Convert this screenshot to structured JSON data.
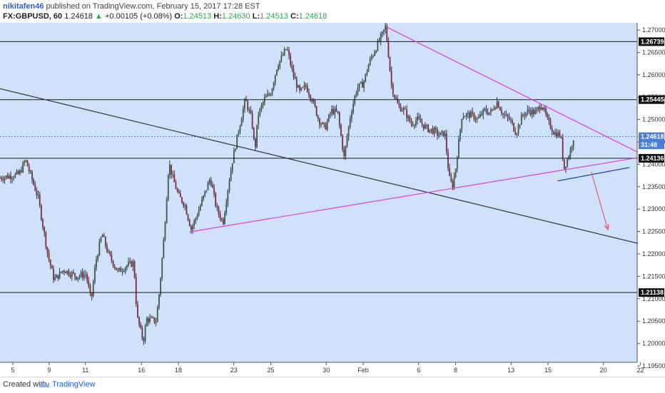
{
  "header": {
    "author": "nikitafen46",
    "published_text": "published on TradingView.com, February 15, 2017 17:28 EST",
    "symbol": "FX:GBPUSD, 60",
    "last": "1.24618",
    "change": "+0.00105 (+0.08%)",
    "o_label": "O:",
    "o_val": "1.24513",
    "h_label": "H:",
    "h_val": "1.24630",
    "l_label": "L:",
    "l_val": "1.24513",
    "c_label": "C:",
    "c_val": "1.24618"
  },
  "footer": {
    "created": "Created with",
    "brand": "TradingView"
  },
  "colors": {
    "background": "#cfe1fb",
    "candle": "#3c3c3c",
    "magenta": "#e040d8",
    "blue": "#1f2fb0",
    "red": "#e35d6a"
  },
  "chart_data": {
    "type": "candlestick",
    "title": "",
    "ylim": [
      1.1958,
      1.2716
    ],
    "xlim": [
      0,
      100
    ],
    "y_ticks": [
      "1.27000",
      "1.26500",
      "1.26000",
      "1.25500",
      "1.25000",
      "1.24500",
      "1.24000",
      "1.23500",
      "1.23000",
      "1.22500",
      "1.22000",
      "1.21500",
      "1.21000",
      "1.20500",
      "1.20000",
      "1.19500"
    ],
    "x_ticks": [
      {
        "label": "5",
        "x": 2
      },
      {
        "label": "9",
        "x": 7.7
      },
      {
        "label": "11",
        "x": 13.4
      },
      {
        "label": "16",
        "x": 22.2
      },
      {
        "label": "18",
        "x": 28
      },
      {
        "label": "23",
        "x": 36.7
      },
      {
        "label": "25",
        "x": 42.5
      },
      {
        "label": "30",
        "x": 51.2
      },
      {
        "label": "Feb",
        "x": 57
      },
      {
        "label": "6",
        "x": 65.7
      },
      {
        "label": "8",
        "x": 71.5
      },
      {
        "label": "13",
        "x": 80.2
      },
      {
        "label": "15",
        "x": 86
      },
      {
        "label": "20",
        "x": 94.7
      },
      {
        "label": "22",
        "x": 100.5
      }
    ],
    "price_labels": [
      {
        "text": "1.26739",
        "value": 1.26739,
        "style": "dark"
      },
      {
        "text": "1.25445",
        "value": 1.25445,
        "style": "dark"
      },
      {
        "text": "1.24618",
        "value": 1.24618,
        "style": "blue"
      },
      {
        "text": "31:48",
        "value": 1.24435,
        "style": "blue"
      },
      {
        "text": "1.24136",
        "value": 1.24136,
        "style": "dark"
      },
      {
        "text": "1.21138",
        "value": 1.21138,
        "style": "dark"
      }
    ],
    "horizontal_lines": [
      1.26739,
      1.25445,
      1.24136,
      1.21138
    ],
    "current_price_line": 1.24618,
    "trend_lines": [
      {
        "color": "#333333",
        "x1": 0,
        "y1": 1.2569,
        "x2": 102,
        "y2": 1.2217
      },
      {
        "color": "#e040d8",
        "x1": 29.7,
        "y1": 1.2249,
        "x2": 101.4,
        "y2": 1.2418
      },
      {
        "color": "#e040d8",
        "x1": 60.6,
        "y1": 1.2707,
        "x2": 101.4,
        "y2": 1.2418
      },
      {
        "color": "#1f2fb0",
        "x1": 87.5,
        "y1": 1.2363,
        "x2": 98.8,
        "y2": 1.2393
      }
    ],
    "arrow": {
      "color": "#e35d6a",
      "x1": 92.8,
      "y1": 1.2383,
      "x2": 95.4,
      "y2": 1.2254
    },
    "series_points": [
      [
        0,
        1.237
      ],
      [
        3,
        1.2378
      ],
      [
        4,
        1.241
      ],
      [
        6,
        1.2325
      ],
      [
        7.5,
        1.2198
      ],
      [
        8.5,
        1.2142
      ],
      [
        10,
        1.2165
      ],
      [
        12,
        1.215
      ],
      [
        13.5,
        1.2155
      ],
      [
        14.3,
        1.2095
      ],
      [
        15,
        1.218
      ],
      [
        16,
        1.2245
      ],
      [
        17,
        1.22
      ],
      [
        18.5,
        1.216
      ],
      [
        20,
        1.2175
      ],
      [
        21,
        1.218
      ],
      [
        21.5,
        1.206
      ],
      [
        22.5,
        1.2005
      ],
      [
        23,
        1.2055
      ],
      [
        24.5,
        1.205
      ],
      [
        25,
        1.2115
      ],
      [
        25.8,
        1.225
      ],
      [
        26.5,
        1.2405
      ],
      [
        27,
        1.2375
      ],
      [
        28,
        1.233
      ],
      [
        29,
        1.231
      ],
      [
        30,
        1.2255
      ],
      [
        31,
        1.229
      ],
      [
        32,
        1.233
      ],
      [
        33,
        1.237
      ],
      [
        34,
        1.23
      ],
      [
        35,
        1.227
      ],
      [
        35.8,
        1.235
      ],
      [
        36.5,
        1.241
      ],
      [
        37.5,
        1.248
      ],
      [
        38.5,
        1.2545
      ],
      [
        39.5,
        1.25
      ],
      [
        40,
        1.243
      ],
      [
        40.5,
        1.251
      ],
      [
        41.5,
        1.2545
      ],
      [
        42.5,
        1.256
      ],
      [
        43.5,
        1.262
      ],
      [
        45,
        1.266
      ],
      [
        46,
        1.26
      ],
      [
        47,
        1.256
      ],
      [
        48,
        1.2575
      ],
      [
        49,
        1.2545
      ],
      [
        50,
        1.25
      ],
      [
        51,
        1.248
      ],
      [
        52,
        1.252
      ],
      [
        53,
        1.2515
      ],
      [
        54,
        1.2415
      ],
      [
        55,
        1.251
      ],
      [
        56,
        1.257
      ],
      [
        57,
        1.258
      ],
      [
        58,
        1.263
      ],
      [
        59,
        1.266
      ],
      [
        60,
        1.269
      ],
      [
        60.5,
        1.2707
      ],
      [
        61,
        1.264
      ],
      [
        61.5,
        1.257
      ],
      [
        62.5,
        1.253
      ],
      [
        63.5,
        1.252
      ],
      [
        64.5,
        1.249
      ],
      [
        65.5,
        1.25
      ],
      [
        67,
        1.248
      ],
      [
        68,
        1.2475
      ],
      [
        69,
        1.2465
      ],
      [
        69.8,
        1.247
      ],
      [
        70.5,
        1.237
      ],
      [
        71,
        1.235
      ],
      [
        71.5,
        1.239
      ],
      [
        72.5,
        1.251
      ],
      [
        74,
        1.251
      ],
      [
        75,
        1.25
      ],
      [
        76,
        1.252
      ],
      [
        77,
        1.2515
      ],
      [
        78,
        1.254
      ],
      [
        79,
        1.251
      ],
      [
        80,
        1.25
      ],
      [
        81,
        1.247
      ],
      [
        82,
        1.251
      ],
      [
        83,
        1.252
      ],
      [
        84,
        1.2515
      ],
      [
        85,
        1.2535
      ],
      [
        86,
        1.2495
      ],
      [
        87,
        1.247
      ],
      [
        88,
        1.2465
      ],
      [
        88.5,
        1.239
      ],
      [
        89.5,
        1.243
      ],
      [
        90,
        1.246
      ]
    ]
  }
}
